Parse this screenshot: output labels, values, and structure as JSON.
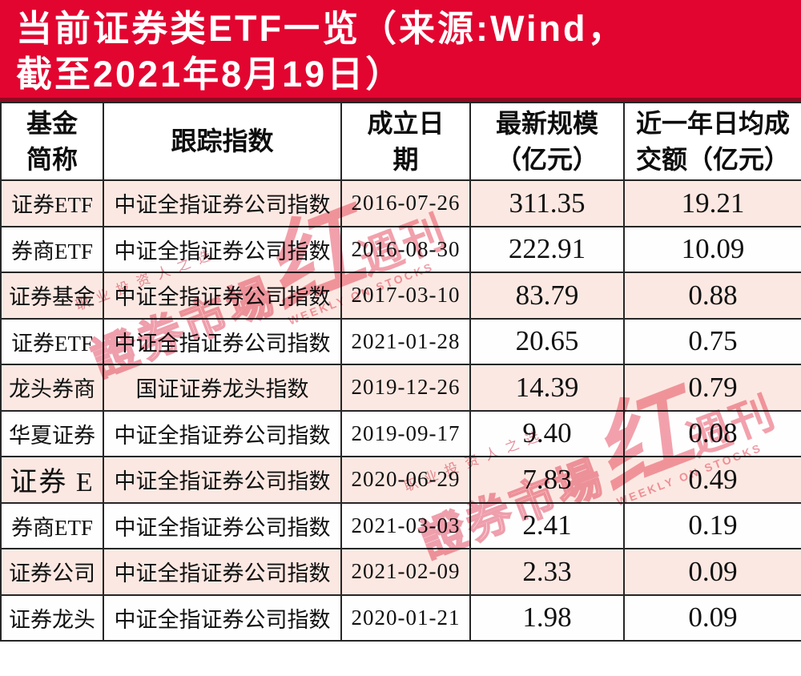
{
  "title": {
    "line1": "当前证券类ETF一览（来源:Wind，",
    "line2": "截至2021年8月19日）"
  },
  "table": {
    "headers": [
      "基金\n简称",
      "跟踪指数",
      "成立日\n期",
      "最新规模\n（亿元）",
      "近一年日均成\n交额（亿元）"
    ],
    "rows": [
      {
        "name": "证券ETF",
        "index": "中证全指证券公司指数",
        "date": "2016-07-26",
        "scale": "311.35",
        "turnover": "19.21",
        "large_name": false
      },
      {
        "name": "券商ETF",
        "index": "中证全指证券公司指数",
        "date": "2016-08-30",
        "scale": "222.91",
        "turnover": "10.09",
        "large_name": false
      },
      {
        "name": "证券基金",
        "index": "中证全指证券公司指数",
        "date": "2017-03-10",
        "scale": "83.79",
        "turnover": "0.88",
        "large_name": false
      },
      {
        "name": "证券ETF",
        "index": "中证全指证券公司指数",
        "date": "2021-01-28",
        "scale": "20.65",
        "turnover": "0.75",
        "large_name": false
      },
      {
        "name": "龙头券商",
        "index": "国证证券龙头指数",
        "date": "2019-12-26",
        "scale": "14.39",
        "turnover": "0.79",
        "large_name": false
      },
      {
        "name": "华夏证券",
        "index": "中证全指证券公司指数",
        "date": "2019-09-17",
        "scale": "9.40",
        "turnover": "0.08",
        "large_name": false
      },
      {
        "name": "证券 E",
        "index": "中证全指证券公司指数",
        "date": "2020-06-29",
        "scale": "7.83",
        "turnover": "0.49",
        "large_name": true
      },
      {
        "name": "券商ETF",
        "index": "中证全指证券公司指数",
        "date": "2021-03-03",
        "scale": "2.41",
        "turnover": "0.19",
        "large_name": false
      },
      {
        "name": "证券公司",
        "index": "中证全指证券公司指数",
        "date": "2021-02-09",
        "scale": "2.33",
        "turnover": "0.09",
        "large_name": false
      },
      {
        "name": "证券龙头",
        "index": "中证全指证券公司指数",
        "date": "2020-01-21",
        "scale": "1.98",
        "turnover": "0.09",
        "large_name": false
      }
    ]
  },
  "watermark": {
    "brand_outline": "證券市場",
    "brand_red": "红",
    "brand_suffix": "週刊",
    "tagline": "职业投资人之选",
    "english": "WEEKLY ON STOCKS"
  },
  "colors": {
    "banner_red": "#e20530",
    "banner_border": "#8e0b22",
    "row_pink": "#fce8e2",
    "border_dark": "#262626",
    "watermark_pink": "#ee8593"
  },
  "chart_data": {
    "type": "table",
    "title": "当前证券类ETF一览（来源:Wind，截至2021年8月19日）",
    "source": "Wind",
    "as_of": "2021-08-19",
    "columns": [
      "基金简称",
      "跟踪指数",
      "成立日期",
      "最新规模（亿元）",
      "近一年日均成交额（亿元）"
    ],
    "rows": [
      [
        "证券ETF",
        "中证全指证券公司指数",
        "2016-07-26",
        311.35,
        19.21
      ],
      [
        "券商ETF",
        "中证全指证券公司指数",
        "2016-08-30",
        222.91,
        10.09
      ],
      [
        "证券基金",
        "中证全指证券公司指数",
        "2017-03-10",
        83.79,
        0.88
      ],
      [
        "证券ETF",
        "中证全指证券公司指数",
        "2021-01-28",
        20.65,
        0.75
      ],
      [
        "龙头券商",
        "国证证券龙头指数",
        "2019-12-26",
        14.39,
        0.79
      ],
      [
        "华夏证券",
        "中证全指证券公司指数",
        "2019-09-17",
        9.4,
        0.08
      ],
      [
        "证券 E",
        "中证全指证券公司指数",
        "2020-06-29",
        7.83,
        0.49
      ],
      [
        "券商ETF",
        "中证全指证券公司指数",
        "2021-03-03",
        2.41,
        0.19
      ],
      [
        "证券公司",
        "中证全指证券公司指数",
        "2021-02-09",
        2.33,
        0.09
      ],
      [
        "证券龙头",
        "中证全指证券公司指数",
        "2020-01-21",
        1.98,
        0.09
      ]
    ]
  }
}
